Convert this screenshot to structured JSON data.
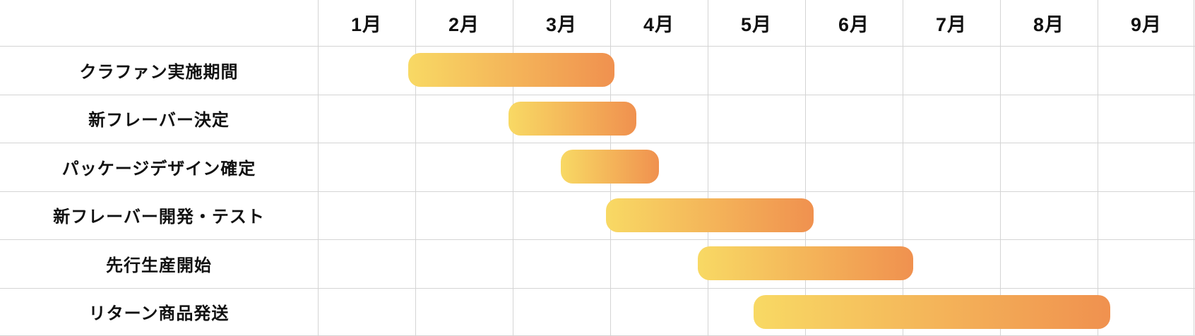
{
  "chart_data": {
    "type": "gantt-bar",
    "title": "",
    "unit": "month",
    "months": [
      "1月",
      "2月",
      "3月",
      "4月",
      "5月",
      "6月",
      "7月",
      "8月",
      "9月"
    ],
    "axis_range_months": [
      0,
      9
    ],
    "grid": true,
    "legend": null,
    "tasks": [
      {
        "label": "クラファン実施期間",
        "start_month": 0.93,
        "end_month": 3.04
      },
      {
        "label": "新フレーバー決定",
        "start_month": 1.96,
        "end_month": 3.27
      },
      {
        "label": "パッケージデザイン確定",
        "start_month": 2.49,
        "end_month": 3.5
      },
      {
        "label": "新フレーバー開発・テスト",
        "start_month": 2.96,
        "end_month": 5.09
      },
      {
        "label": "先行生産開始",
        "start_month": 3.9,
        "end_month": 6.11
      },
      {
        "label": "リターン商品発送",
        "start_month": 4.47,
        "end_month": 8.13
      }
    ],
    "colors": {
      "bar_gradient_from": "#F8D964",
      "bar_gradient_to": "#F0914F",
      "grid_color": "#d4d4d4",
      "text_color": "#111111",
      "background": "#ffffff"
    }
  }
}
